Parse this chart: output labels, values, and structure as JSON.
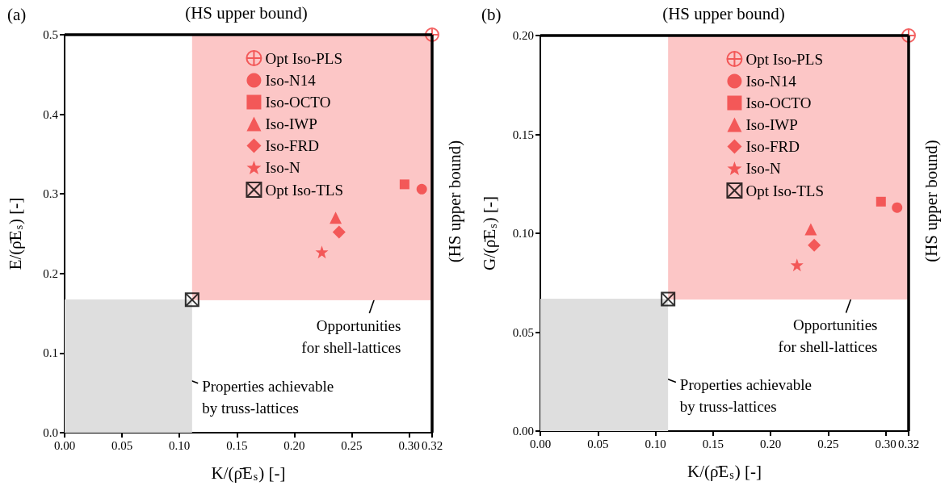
{
  "chart_data": [
    {
      "type": "scatter",
      "title": "(a)",
      "xlabel": "K/(ρ̄E$_{s}$) [-]",
      "ylabel": "E/(ρ̄E$_{s}$) [-]",
      "xlim": [
        0,
        0.32
      ],
      "xticks": [
        {
          "value": 0,
          "label": "0.00"
        },
        {
          "value": 0.05,
          "label": "0.05"
        },
        {
          "value": 0.1,
          "label": "0.10"
        },
        {
          "value": 0.15,
          "label": "0.15"
        },
        {
          "value": 0.2,
          "label": "0.20"
        },
        {
          "value": 0.25,
          "label": "0.25"
        },
        {
          "value": 0.3,
          "label": "0.30"
        },
        0.32
      ],
      "ylim": [
        0,
        0.5
      ],
      "yticks": [
        {
          "value": 0,
          "label": "0.0"
        },
        0.1,
        0.2,
        0.3,
        0.4,
        0.5
      ],
      "legend": "top right",
      "series": [
        {
          "type": "line",
          "color": "#fcc6c6",
          "marker": "none",
          "x": [
            0.111,
            0.32
          ],
          "values": [
            0.167,
            0.167
          ],
          "lower": [
            0.167,
            0.167
          ],
          "upper": [
            0.5,
            0.5
          ]
        },
        {
          "type": "area",
          "color": "#dedede",
          "marker": "none",
          "x": [
            0,
            0.111
          ],
          "values": [
            0.167,
            0.167
          ]
        },
        {
          "name": "Opt Iso-PLS",
          "color": "#f03c3c",
          "marker": "cross",
          "x": [
            0.32
          ],
          "values": [
            0.5
          ]
        },
        {
          "name": "Iso-N14",
          "color": "#f03c3c",
          "marker": "circle",
          "x": [
            0.311
          ],
          "values": [
            0.306
          ]
        },
        {
          "name": "Iso-OCTO",
          "color": "#f03c3c",
          "marker": "square",
          "x": [
            0.296
          ],
          "values": [
            0.312
          ]
        },
        {
          "name": "Iso-IWP",
          "color": "#f03c3c",
          "marker": "triangle",
          "x": [
            0.236
          ],
          "values": [
            0.27
          ]
        },
        {
          "name": "Iso-FRD",
          "color": "#f03c3c",
          "marker": "diamond",
          "x": [
            0.239
          ],
          "values": [
            0.252
          ]
        },
        {
          "name": "Iso-N",
          "color": "#f03c3c",
          "marker": "star",
          "x": [
            0.224
          ],
          "values": [
            0.227
          ]
        },
        {
          "name": "Opt Iso-TLS",
          "color": "#000000",
          "marker": "cross",
          "x": [
            0.111
          ],
          "values": [
            0.167
          ]
        }
      ],
      "ref_lines": [
        {
          "axis": "y",
          "value": 0.5,
          "label": "(HS upper bound)"
        },
        {
          "axis": "x",
          "value": 0.32,
          "label": "(HS upper bound)"
        }
      ],
      "annotations": [
        "Opportunities\nfor shell-lattices",
        "Properties achievable\nby truss-lattices"
      ]
    },
    {
      "type": "scatter",
      "title": "(b)",
      "xlabel": "K/(ρ̄E$_{s}$) [-]",
      "ylabel": "G/(ρ̄E$_{s}$) [-]",
      "xlim": [
        0,
        0.32
      ],
      "xticks": [
        {
          "value": 0,
          "label": "0.00"
        },
        {
          "value": 0.05,
          "label": "0.05"
        },
        {
          "value": 0.1,
          "label": "0.10"
        },
        {
          "value": 0.15,
          "label": "0.15"
        },
        {
          "value": 0.2,
          "label": "0.20"
        },
        {
          "value": 0.25,
          "label": "0.25"
        },
        {
          "value": 0.3,
          "label": "0.30"
        },
        0.32
      ],
      "ylim": [
        0,
        0.2
      ],
      "yticks": [
        {
          "value": 0,
          "label": "0.00"
        },
        0.05,
        {
          "value": 0.1,
          "label": "0.10"
        },
        0.15,
        {
          "value": 0.2,
          "label": "0.20"
        }
      ],
      "legend": "top right",
      "series": [
        {
          "type": "line",
          "color": "#fcc6c6",
          "marker": "none",
          "x": [
            0.111,
            0.32
          ],
          "values": [
            0.0667,
            0.0667
          ],
          "lower": [
            0.0667,
            0.0667
          ],
          "upper": [
            0.2,
            0.2
          ]
        },
        {
          "type": "area",
          "color": "#dedede",
          "marker": "none",
          "x": [
            0,
            0.111
          ],
          "values": [
            0.0667,
            0.0667
          ]
        },
        {
          "name": "Opt Iso-PLS",
          "color": "#f03c3c",
          "marker": "cross",
          "x": [
            0.32
          ],
          "values": [
            0.2
          ]
        },
        {
          "name": "Iso-N14",
          "color": "#f03c3c",
          "marker": "circle",
          "x": [
            0.31
          ],
          "values": [
            0.113
          ]
        },
        {
          "name": "Iso-OCTO",
          "color": "#f03c3c",
          "marker": "square",
          "x": [
            0.296
          ],
          "values": [
            0.116
          ]
        },
        {
          "name": "Iso-IWP",
          "color": "#f03c3c",
          "marker": "triangle",
          "x": [
            0.235
          ],
          "values": [
            0.102
          ]
        },
        {
          "name": "Iso-FRD",
          "color": "#f03c3c",
          "marker": "diamond",
          "x": [
            0.238
          ],
          "values": [
            0.094
          ]
        },
        {
          "name": "Iso-N",
          "color": "#f03c3c",
          "marker": "star",
          "x": [
            0.223
          ],
          "values": [
            0.084
          ]
        },
        {
          "name": "Opt Iso-TLS",
          "color": "#000000",
          "marker": "cross",
          "x": [
            0.111
          ],
          "values": [
            0.0667
          ]
        }
      ],
      "ref_lines": [
        {
          "axis": "y",
          "value": 0.2,
          "label": "(HS upper bound)"
        },
        {
          "axis": "x",
          "value": 0.32,
          "label": "(HS upper bound)"
        }
      ],
      "annotations": [
        "Opportunities\nfor shell-lattices",
        "Properties achievable\nby truss-lattices"
      ]
    }
  ]
}
